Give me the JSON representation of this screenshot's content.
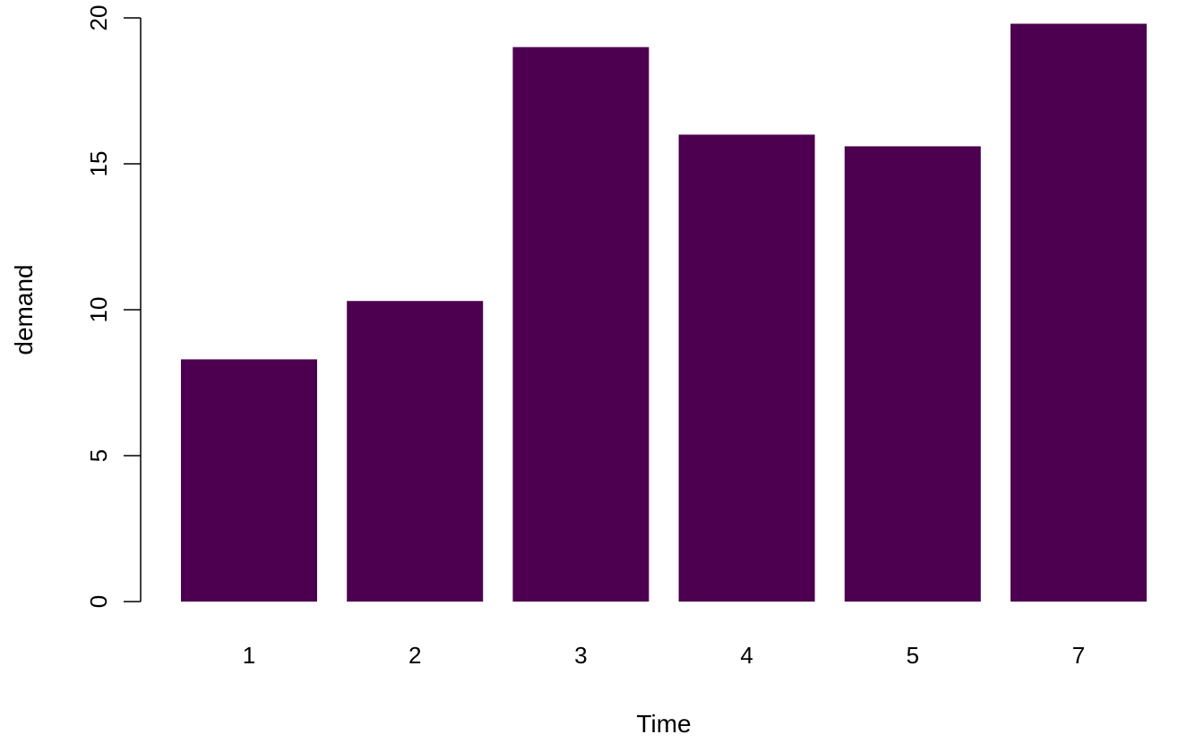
{
  "chart_data": {
    "type": "bar",
    "categories": [
      "1",
      "2",
      "3",
      "4",
      "5",
      "7"
    ],
    "values": [
      8.3,
      10.3,
      19.0,
      16.0,
      15.6,
      19.8
    ],
    "title": "",
    "xlabel": "Time",
    "ylabel": "demand",
    "ylim": [
      0,
      20
    ],
    "yticks": [
      0,
      5,
      10,
      15,
      20
    ],
    "bar_color": "#4D004F",
    "grid": false,
    "legend": "none"
  }
}
